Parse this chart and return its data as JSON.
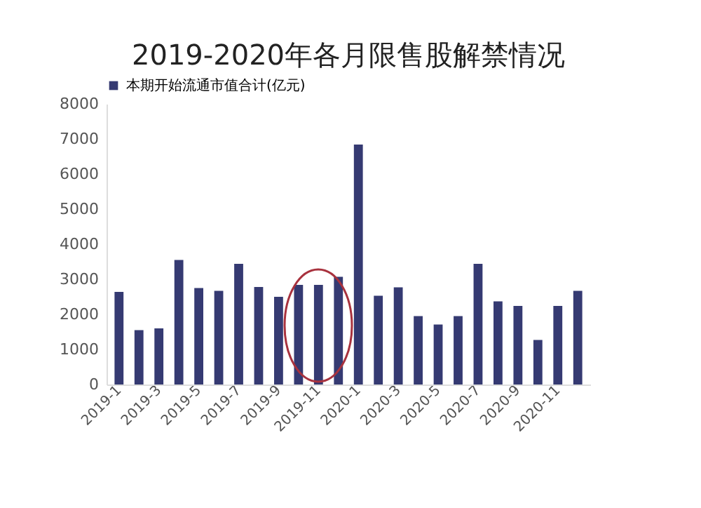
{
  "chart_data": {
    "type": "bar",
    "title": "2019-2020年各月限售股解禁情况",
    "categories": [
      "2019-1",
      null,
      "2019-3",
      null,
      "2019-5",
      null,
      "2019-7",
      null,
      "2019-9",
      null,
      "2019-11",
      null,
      "2020-1",
      null,
      "2020-3",
      null,
      "2020-5",
      null,
      "2020-7",
      null,
      "2020-9",
      null,
      "2020-11",
      null
    ],
    "series": [
      {
        "name": "本期开始流通市值合计(亿元)",
        "color": "#353a72",
        "values": [
          2640,
          1550,
          1600,
          3550,
          2750,
          2670,
          3440,
          2780,
          2500,
          2840,
          2840,
          3070,
          6840,
          2530,
          2770,
          1950,
          1710,
          1950,
          3440,
          2370,
          2240,
          1270,
          2240,
          2670
        ]
      }
    ],
    "ylim": [
      0,
      8000
    ],
    "yticks": [
      0,
      1000,
      2000,
      3000,
      4000,
      5000,
      6000,
      7000,
      8000
    ],
    "grid": false,
    "legend": "top"
  }
}
